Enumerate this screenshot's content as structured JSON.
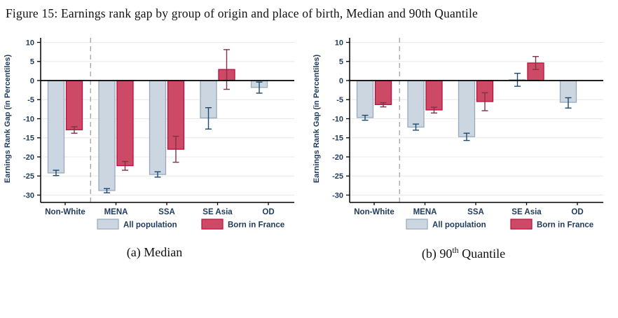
{
  "figure": {
    "title": "Figure 15: Earnings rank gap by group of origin and place of birth, Median and 90th Quantile"
  },
  "captions": {
    "a": {
      "prefix": "(a) Median",
      "sup": "",
      "suffix": ""
    },
    "b": {
      "prefix": "(b) 90",
      "sup": "th",
      "suffix": " Quantile"
    }
  },
  "colors": {
    "background": "#ffffff",
    "gridline": "#e8e8e8",
    "axis_line": "#000000",
    "axis_text": "#1e3a5c",
    "dashed_separator": "#a8a8a8",
    "all_population_fill": "#ccd6e0",
    "all_population_stroke": "#96a9bd",
    "born_in_france_fill": "#cd4a66",
    "born_in_france_stroke": "#bb0e3f"
  },
  "chart_data": [
    {
      "type": "bar",
      "title": "(a) Median",
      "ylabel": "Earnings Rank Gap (in Percentiles)",
      "ylim": [
        -30,
        10
      ],
      "ytick_step": 5,
      "grid": true,
      "legend_position": "bottom",
      "categories": [
        "Non-White",
        "MENA",
        "SSA",
        "SE Asia",
        "OD"
      ],
      "separator_after_index": 0,
      "series": [
        {
          "name": "All population",
          "values": [
            -24.2,
            -28.8,
            -24.6,
            -9.8,
            -1.8
          ],
          "ci_low": [
            -24.9,
            -29.4,
            -25.3,
            -12.7,
            -3.3
          ],
          "ci_high": [
            -23.5,
            -28.3,
            -23.9,
            -7.1,
            -0.4
          ],
          "fill": "#ccd6e0",
          "stroke": "#96a9bd",
          "error_color": "#1d4a6e"
        },
        {
          "name": "Born in France",
          "values": [
            -12.9,
            -22.3,
            -18.0,
            2.9,
            null
          ],
          "ci_low": [
            -13.8,
            -23.5,
            -21.4,
            -2.3,
            null
          ],
          "ci_high": [
            -12.1,
            -21.2,
            -14.6,
            8.1,
            null
          ],
          "fill": "#cd4a66",
          "stroke": "#bb0e3f",
          "error_color": "#7e3344"
        }
      ]
    },
    {
      "type": "bar",
      "title": "(b) 90th Quantile",
      "ylabel": "Earnings Rank Gap (in Percentiles)",
      "ylim": [
        -30,
        10
      ],
      "ytick_step": 5,
      "grid": true,
      "legend_position": "bottom",
      "categories": [
        "Non-White",
        "MENA",
        "SSA",
        "SE Asia",
        "OD"
      ],
      "separator_after_index": 0,
      "series": [
        {
          "name": "All population",
          "values": [
            -9.7,
            -12.2,
            -14.7,
            0.2,
            -5.7
          ],
          "ci_low": [
            -10.4,
            -13.0,
            -15.7,
            -1.5,
            -7.2
          ],
          "ci_high": [
            -9.1,
            -11.4,
            -13.8,
            1.9,
            -4.5
          ],
          "fill": "#ccd6e0",
          "stroke": "#96a9bd",
          "error_color": "#1d4a6e"
        },
        {
          "name": "Born in France",
          "values": [
            -6.3,
            -7.7,
            -5.5,
            4.6,
            null
          ],
          "ci_low": [
            -6.9,
            -8.5,
            -7.9,
            2.9,
            null
          ],
          "ci_high": [
            -5.8,
            -7.0,
            -3.2,
            6.3,
            null
          ],
          "fill": "#cd4a66",
          "stroke": "#bb0e3f",
          "error_color": "#7e3344"
        }
      ]
    }
  ]
}
